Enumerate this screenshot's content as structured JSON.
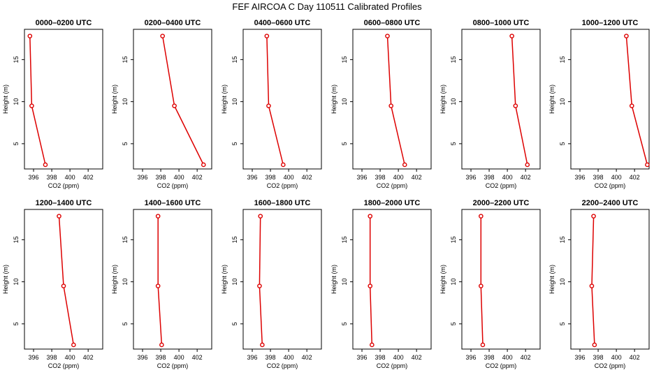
{
  "figure": {
    "title": "FEF AIRCOA C  Day 110511  Calibrated Profiles"
  },
  "chart_data": [
    {
      "type": "line",
      "title": "0000–0200 UTC",
      "xlabel": "CO2 (ppm)",
      "ylabel": "Height (m)",
      "xlim": [
        395,
        403.6
      ],
      "ylim": [
        2,
        18.6
      ],
      "xticks": [
        396,
        398,
        400,
        402
      ],
      "yticks": [
        5,
        10,
        15
      ],
      "series": [
        {
          "x": [
            397.3,
            395.8,
            395.6
          ],
          "y": [
            2.5,
            9.5,
            17.8
          ]
        }
      ],
      "color": "#dd0000",
      "grid": false
    },
    {
      "type": "line",
      "title": "0200–0400 UTC",
      "xlabel": "CO2 (ppm)",
      "ylabel": "Height (m)",
      "xlim": [
        395,
        403.6
      ],
      "ylim": [
        2,
        18.6
      ],
      "xticks": [
        396,
        398,
        400,
        402
      ],
      "yticks": [
        5,
        10,
        15
      ],
      "series": [
        {
          "x": [
            402.7,
            399.5,
            398.2
          ],
          "y": [
            2.5,
            9.5,
            17.8
          ]
        }
      ],
      "color": "#dd0000",
      "grid": false
    },
    {
      "type": "line",
      "title": "0400–0600 UTC",
      "xlabel": "CO2 (ppm)",
      "ylabel": "Height (m)",
      "xlim": [
        395,
        403.6
      ],
      "ylim": [
        2,
        18.6
      ],
      "xticks": [
        396,
        398,
        400,
        402
      ],
      "yticks": [
        5,
        10,
        15
      ],
      "series": [
        {
          "x": [
            399.4,
            397.8,
            397.6
          ],
          "y": [
            2.5,
            9.5,
            17.8
          ]
        }
      ],
      "color": "#dd0000",
      "grid": false
    },
    {
      "type": "line",
      "title": "0600–0800 UTC",
      "xlabel": "CO2 (ppm)",
      "ylabel": "Height (m)",
      "xlim": [
        395,
        403.6
      ],
      "ylim": [
        2,
        18.6
      ],
      "xticks": [
        396,
        398,
        400,
        402
      ],
      "yticks": [
        5,
        10,
        15
      ],
      "series": [
        {
          "x": [
            400.7,
            399.2,
            398.8
          ],
          "y": [
            2.5,
            9.5,
            17.8
          ]
        }
      ],
      "color": "#dd0000",
      "grid": false
    },
    {
      "type": "line",
      "title": "0800–1000 UTC",
      "xlabel": "CO2 (ppm)",
      "ylabel": "Height (m)",
      "xlim": [
        395,
        403.6
      ],
      "ylim": [
        2,
        18.6
      ],
      "xticks": [
        396,
        398,
        400,
        402
      ],
      "yticks": [
        5,
        10,
        15
      ],
      "series": [
        {
          "x": [
            402.2,
            400.9,
            400.5
          ],
          "y": [
            2.5,
            9.5,
            17.8
          ]
        }
      ],
      "color": "#dd0000",
      "grid": false
    },
    {
      "type": "line",
      "title": "1000–1200 UTC",
      "xlabel": "CO2 (ppm)",
      "ylabel": "Height (m)",
      "xlim": [
        395,
        403.6
      ],
      "ylim": [
        2,
        18.6
      ],
      "xticks": [
        396,
        398,
        400,
        402
      ],
      "yticks": [
        5,
        10,
        15
      ],
      "series": [
        {
          "x": [
            403.4,
            401.7,
            401.1
          ],
          "y": [
            2.5,
            9.5,
            17.8
          ]
        }
      ],
      "color": "#dd0000",
      "grid": false
    },
    {
      "type": "line",
      "title": "1200–1400 UTC",
      "xlabel": "CO2 (ppm)",
      "ylabel": "Height (m)",
      "xlim": [
        395,
        403.6
      ],
      "ylim": [
        2,
        18.6
      ],
      "xticks": [
        396,
        398,
        400,
        402
      ],
      "yticks": [
        5,
        10,
        15
      ],
      "series": [
        {
          "x": [
            400.4,
            399.3,
            398.8
          ],
          "y": [
            2.5,
            9.5,
            17.8
          ]
        }
      ],
      "color": "#dd0000",
      "grid": false
    },
    {
      "type": "line",
      "title": "1400–1600 UTC",
      "xlabel": "CO2 (ppm)",
      "ylabel": "Height (m)",
      "xlim": [
        395,
        403.6
      ],
      "ylim": [
        2,
        18.6
      ],
      "xticks": [
        396,
        398,
        400,
        402
      ],
      "yticks": [
        5,
        10,
        15
      ],
      "series": [
        {
          "x": [
            398.1,
            397.7,
            397.7
          ],
          "y": [
            2.5,
            9.5,
            17.8
          ]
        }
      ],
      "color": "#dd0000",
      "grid": false
    },
    {
      "type": "line",
      "title": "1600–1800 UTC",
      "xlabel": "CO2 (ppm)",
      "ylabel": "Height (m)",
      "xlim": [
        395,
        403.6
      ],
      "ylim": [
        2,
        18.6
      ],
      "xticks": [
        396,
        398,
        400,
        402
      ],
      "yticks": [
        5,
        10,
        15
      ],
      "series": [
        {
          "x": [
            397.1,
            396.8,
            396.9
          ],
          "y": [
            2.5,
            9.5,
            17.8
          ]
        }
      ],
      "color": "#dd0000",
      "grid": false
    },
    {
      "type": "line",
      "title": "1800–2000 UTC",
      "xlabel": "CO2 (ppm)",
      "ylabel": "Height (m)",
      "xlim": [
        395,
        403.6
      ],
      "ylim": [
        2,
        18.6
      ],
      "xticks": [
        396,
        398,
        400,
        402
      ],
      "yticks": [
        5,
        10,
        15
      ],
      "series": [
        {
          "x": [
            397.1,
            396.9,
            396.9
          ],
          "y": [
            2.5,
            9.5,
            17.8
          ]
        }
      ],
      "color": "#dd0000",
      "grid": false
    },
    {
      "type": "line",
      "title": "2000–2200 UTC",
      "xlabel": "CO2 (ppm)",
      "ylabel": "Height (m)",
      "xlim": [
        395,
        403.6
      ],
      "ylim": [
        2,
        18.6
      ],
      "xticks": [
        396,
        398,
        400,
        402
      ],
      "yticks": [
        5,
        10,
        15
      ],
      "series": [
        {
          "x": [
            397.3,
            397.1,
            397.1
          ],
          "y": [
            2.5,
            9.5,
            17.8
          ]
        }
      ],
      "color": "#dd0000",
      "grid": false
    },
    {
      "type": "line",
      "title": "2200–2400 UTC",
      "xlabel": "CO2 (ppm)",
      "ylabel": "Height (m)",
      "xlim": [
        395,
        403.6
      ],
      "ylim": [
        2,
        18.6
      ],
      "xticks": [
        396,
        398,
        400,
        402
      ],
      "yticks": [
        5,
        10,
        15
      ],
      "series": [
        {
          "x": [
            397.6,
            397.3,
            397.5
          ],
          "y": [
            2.5,
            9.5,
            17.8
          ]
        }
      ],
      "color": "#dd0000",
      "grid": false
    }
  ]
}
